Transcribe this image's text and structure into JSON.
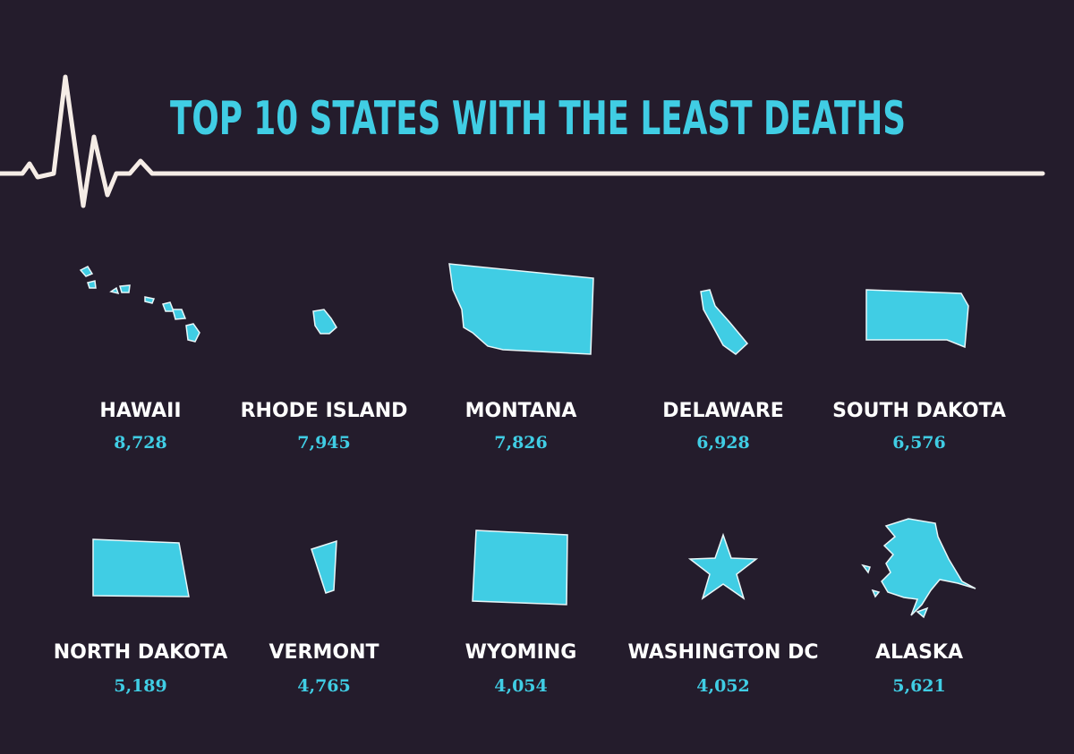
{
  "title": "TOP 10 STATES WITH THE LEAST DEATHS",
  "states": [
    {
      "name": "HAWAII",
      "deaths": "8,728"
    },
    {
      "name": "RHODE ISLAND",
      "deaths": "7,945"
    },
    {
      "name": "MONTANA",
      "deaths": "7,826"
    },
    {
      "name": "DELAWARE",
      "deaths": "6,928"
    },
    {
      "name": "SOUTH DAKOTA",
      "deaths": "6,576"
    },
    {
      "name": "NORTH DAKOTA",
      "deaths": "5,189"
    },
    {
      "name": "VERMONT",
      "deaths": "4,765"
    },
    {
      "name": "WYOMING",
      "deaths": "4,054"
    },
    {
      "name": "WASHINGTON DC",
      "deaths": "4,052"
    },
    {
      "name": "ALASKA",
      "deaths": "5,621"
    }
  ]
}
